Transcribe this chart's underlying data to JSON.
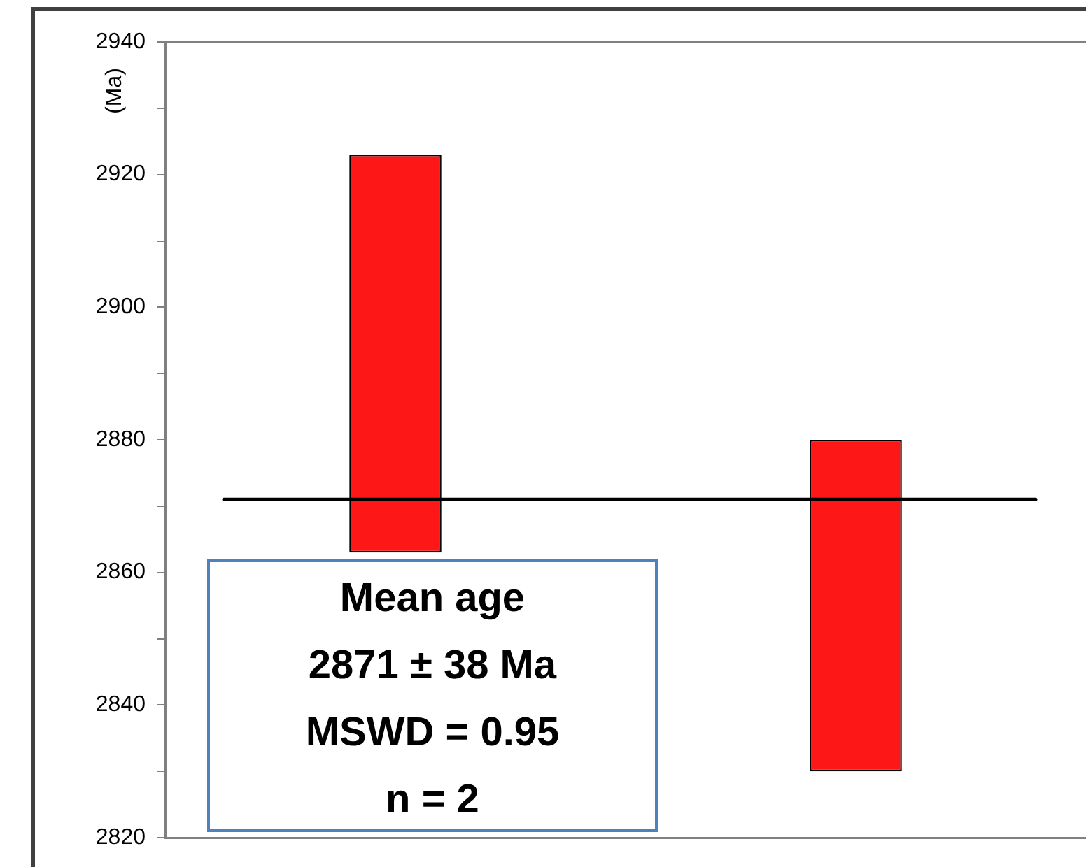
{
  "chart_data": {
    "type": "bar",
    "ylabel": "(Ma)",
    "categories": [
      null,
      null
    ],
    "base": [
      2863,
      2830
    ],
    "values": [
      60,
      50
    ],
    "color": "#fe1717",
    "ylim": [
      2820,
      2940
    ],
    "yticks": [
      2820,
      {
        "value": 2830,
        "label": null
      },
      2840,
      {
        "value": 2850,
        "label": null
      },
      2860,
      {
        "value": 2870,
        "label": null
      },
      2880,
      {
        "value": 2890,
        "label": null
      },
      2900,
      {
        "value": 2910,
        "label": null
      },
      2920,
      {
        "value": 2930,
        "label": null
      },
      2940
    ],
    "grid": false,
    "legend": false,
    "tick_labels": "y",
    "ref_lines": [
      {
        "axis": "y",
        "value": 2871,
        "color": "#000000"
      }
    ],
    "annotations": [
      "Mean age",
      "2871 ± 38 Ma",
      "MSWD = 0.95",
      "n = 2"
    ]
  }
}
